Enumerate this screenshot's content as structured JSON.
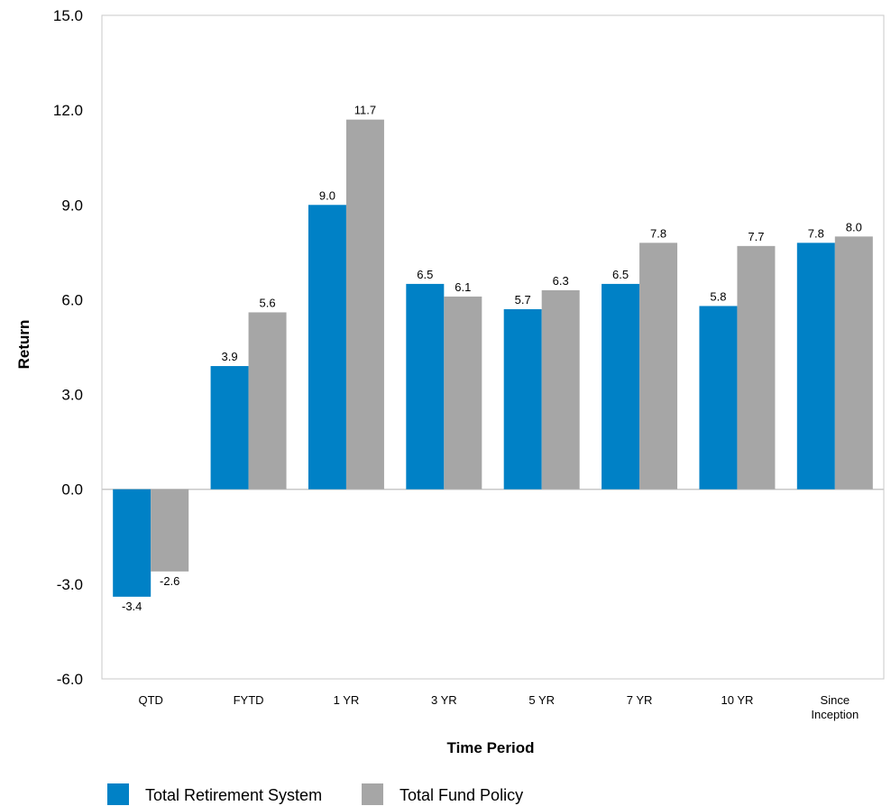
{
  "chart_data": {
    "type": "bar",
    "categories": [
      "QTD",
      "FYTD",
      "1 YR",
      "3 YR",
      "5 YR",
      "7 YR",
      "10 YR",
      "Since Inception"
    ],
    "series": [
      {
        "name": "Total Retirement System",
        "color": "#0081c6",
        "values": [
          -3.4,
          3.9,
          9.0,
          6.5,
          5.7,
          6.5,
          5.8,
          7.8
        ]
      },
      {
        "name": "Total Fund Policy",
        "color": "#a6a6a6",
        "values": [
          -2.6,
          5.6,
          11.7,
          6.1,
          6.3,
          7.8,
          7.7,
          8.0
        ]
      }
    ],
    "xlabel": "Time Period",
    "ylabel": "Return",
    "ylim": [
      -6.0,
      15.0
    ],
    "yticks": [
      "15.0",
      "12.0",
      "9.0",
      "6.0",
      "3.0",
      "0.0",
      "-3.0",
      "-6.0"
    ],
    "grid": false,
    "legend_position": "bottom-left"
  }
}
